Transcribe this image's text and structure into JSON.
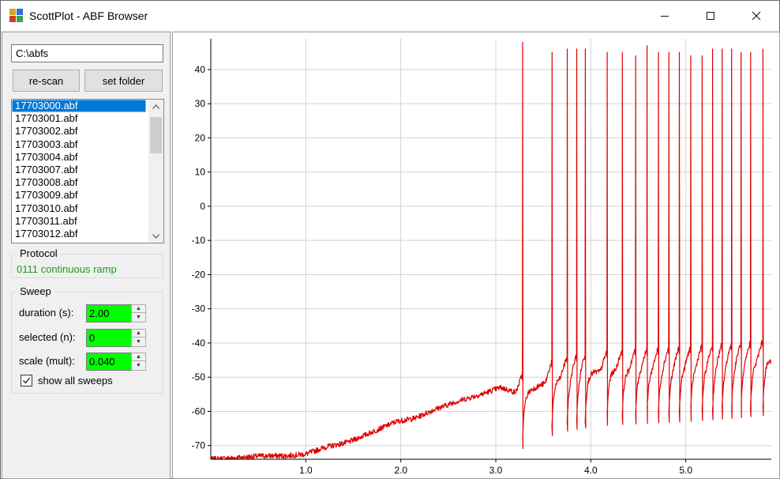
{
  "window": {
    "title": "ScottPlot - ABF Browser",
    "controls": {
      "minimize": "minimize-icon",
      "maximize": "maximize-icon",
      "close": "close-icon"
    }
  },
  "sidebar": {
    "folder_path": "C:\\abfs",
    "rescan_label": "re-scan",
    "set_folder_label": "set folder",
    "files": [
      "17703000.abf",
      "17703001.abf",
      "17703002.abf",
      "17703003.abf",
      "17703004.abf",
      "17703007.abf",
      "17703008.abf",
      "17703009.abf",
      "17703010.abf",
      "17703011.abf",
      "17703012.abf"
    ],
    "selected_file": "17703000.abf",
    "protocol": {
      "legend": "Protocol",
      "value": "0111 continuous ramp"
    },
    "sweep": {
      "legend": "Sweep",
      "duration_label": "duration (s):",
      "duration_value": "2.00",
      "selected_label": "selected (n):",
      "selected_value": "0",
      "scale_label": "scale (mult):",
      "scale_value": "0.040",
      "show_all_label": "show all sweeps",
      "show_all_checked": true
    },
    "field_color": "#00ff00",
    "protocol_color": "#1e9b1e",
    "selection_color": "#0078d7"
  },
  "chart_data": {
    "type": "line",
    "title": "",
    "xlabel": "",
    "ylabel": "",
    "xlim": [
      0,
      5.9
    ],
    "ylim": [
      -74,
      49
    ],
    "x_ticks": [
      {
        "v": 1.0,
        "label": "1.0"
      },
      {
        "v": 2.0,
        "label": "2.0"
      },
      {
        "v": 3.0,
        "label": "3.0"
      },
      {
        "v": 4.0,
        "label": "4.0"
      },
      {
        "v": 5.0,
        "label": "5.0"
      }
    ],
    "y_ticks": [
      {
        "v": 40,
        "label": "40"
      },
      {
        "v": 30,
        "label": "30"
      },
      {
        "v": 20,
        "label": "20"
      },
      {
        "v": 10,
        "label": "10"
      },
      {
        "v": 0,
        "label": "0"
      },
      {
        "v": -10,
        "label": "-10"
      },
      {
        "v": -20,
        "label": "-20"
      },
      {
        "v": -30,
        "label": "-30"
      },
      {
        "v": -40,
        "label": "-40"
      },
      {
        "v": -50,
        "label": "-50"
      },
      {
        "v": -60,
        "label": "-60"
      },
      {
        "v": -70,
        "label": "-70"
      }
    ],
    "grid": true,
    "line_color": "#e00000",
    "baseline": [
      [
        0,
        -74
      ],
      [
        0.3,
        -73.5
      ],
      [
        0.55,
        -73
      ],
      [
        0.8,
        -73
      ],
      [
        1.0,
        -72.5
      ],
      [
        1.2,
        -70.5
      ],
      [
        1.45,
        -69
      ],
      [
        1.7,
        -66
      ],
      [
        1.95,
        -63
      ],
      [
        2.15,
        -62
      ],
      [
        2.35,
        -59.5
      ],
      [
        2.6,
        -57
      ],
      [
        2.85,
        -55
      ],
      [
        3.05,
        -53
      ],
      [
        3.27,
        -55
      ],
      [
        3.5,
        -52
      ],
      [
        3.7,
        -50
      ],
      [
        3.9,
        -49
      ],
      [
        4.2,
        -48
      ],
      [
        4.6,
        -47.5
      ],
      [
        5.0,
        -47
      ],
      [
        5.5,
        -46
      ],
      [
        5.9,
        -45
      ]
    ],
    "spikes": [
      {
        "t": 3.28,
        "peak": 48
      },
      {
        "t": 3.59,
        "peak": 45
      },
      {
        "t": 3.75,
        "peak": 46
      },
      {
        "t": 3.85,
        "peak": 46
      },
      {
        "t": 3.94,
        "peak": 46
      },
      {
        "t": 4.17,
        "peak": 45
      },
      {
        "t": 4.33,
        "peak": 45
      },
      {
        "t": 4.47,
        "peak": 44
      },
      {
        "t": 4.59,
        "peak": 47
      },
      {
        "t": 4.71,
        "peak": 45
      },
      {
        "t": 4.82,
        "peak": 45
      },
      {
        "t": 4.93,
        "peak": 45
      },
      {
        "t": 5.05,
        "peak": 44
      },
      {
        "t": 5.17,
        "peak": 44
      },
      {
        "t": 5.28,
        "peak": 46
      },
      {
        "t": 5.38,
        "peak": 46
      },
      {
        "t": 5.48,
        "peak": 46
      },
      {
        "t": 5.58,
        "peak": 45
      },
      {
        "t": 5.68,
        "peak": 45
      },
      {
        "t": 5.81,
        "peak": 46
      }
    ]
  }
}
